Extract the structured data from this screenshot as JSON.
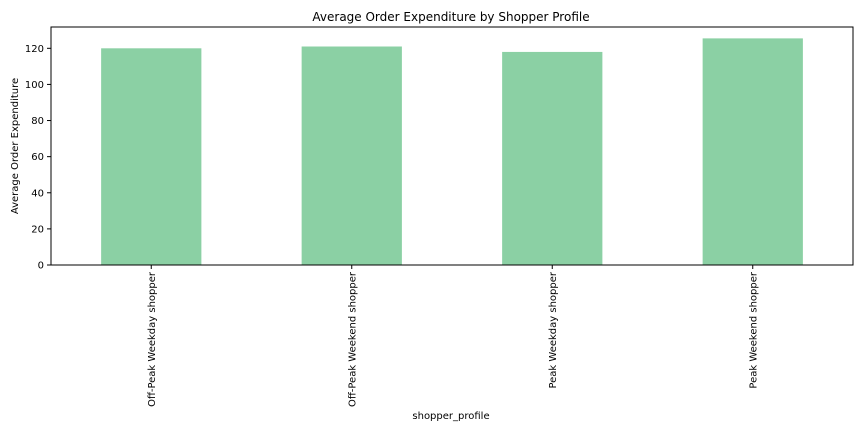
{
  "chart_data": {
    "type": "bar",
    "title": "Average Order Expenditure by Shopper Profile",
    "xlabel": "shopper_profile",
    "ylabel": "Average Order Expenditure",
    "categories": [
      "Off-Peak Weekday shopper",
      "Off-Peak Weekend shopper",
      "Peak Weekday shopper",
      "Peak Weekend shopper"
    ],
    "values": [
      120,
      121,
      118,
      125.5
    ],
    "ylim": [
      0,
      131.8
    ],
    "yticks": [
      0,
      20,
      40,
      60,
      80,
      100,
      120
    ],
    "ytick_labels": [
      "0",
      "20",
      "40",
      "60",
      "80",
      "100",
      "120"
    ],
    "grid": false,
    "legend": null,
    "colors": {
      "bar": "#8bd0a4",
      "axis": "#000000",
      "background": "#ffffff"
    }
  }
}
